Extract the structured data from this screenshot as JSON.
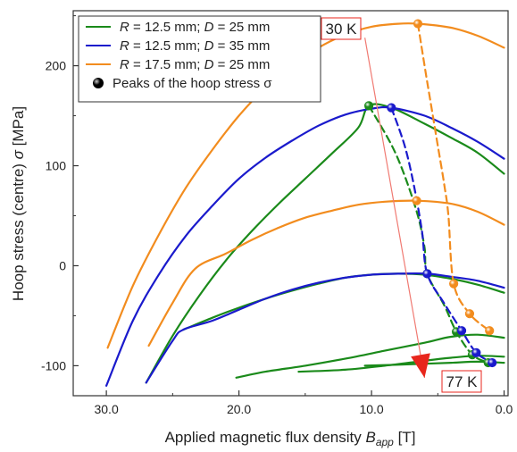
{
  "chart_data": {
    "type": "line",
    "xlabel": "Applied magnetic flux density B_app [T]",
    "xlabel_parts": {
      "main": "Applied magnetic flux density ",
      "var": "B",
      "sub": "app",
      "unit": " [T]"
    },
    "ylabel": "Hoop stress (centre) σ [MPa]",
    "ylabel_parts": {
      "main": "Hoop stress (centre) ",
      "var": "σ",
      "unit": " [MPa]"
    },
    "xlim": [
      32.5,
      -0.3
    ],
    "ylim": [
      -130,
      255
    ],
    "x_reversed": true,
    "x_ticks": [
      30,
      20,
      10,
      0
    ],
    "x_tick_labels": [
      "30.0",
      "20.0",
      "10.0",
      "0.0"
    ],
    "y_ticks": [
      -100,
      0,
      100,
      200
    ],
    "y_tick_labels": [
      "-100",
      "0",
      "100",
      "200"
    ],
    "legend_position": "top-left",
    "legend": [
      {
        "var1": "R",
        "text1": " = 12.5 mm; ",
        "var2": "D",
        "text2": " = 25 mm",
        "color": "#1a8a1a",
        "kind": "line"
      },
      {
        "var1": "R",
        "text1": " = 12.5 mm; ",
        "var2": "D",
        "text2": " = 35 mm",
        "color": "#1a1acc",
        "kind": "line"
      },
      {
        "var1": "R",
        "text1": " = 17.5 mm; ",
        "var2": "D",
        "text2": " = 25 mm",
        "color": "#f28c1e",
        "kind": "line"
      },
      {
        "text": "Peaks of the hoop stress σ",
        "color": "#000000",
        "kind": "marker"
      }
    ],
    "annotations": {
      "top_label": "30 K",
      "bottom_label": "77 K",
      "arrow_from": [
        10.5,
        228
      ],
      "arrow_to": [
        6.0,
        -112
      ],
      "arrow_color": "#e8261c"
    },
    "series": [
      {
        "group": "R12.5_D25",
        "color": "#1a8a1a",
        "kind": "curve",
        "points": [
          [
            27.0,
            -117
          ],
          [
            25,
            -70
          ],
          [
            23,
            -30
          ],
          [
            21,
            5
          ],
          [
            19,
            35
          ],
          [
            17,
            62
          ],
          [
            15,
            87
          ],
          [
            13,
            112
          ],
          [
            11,
            138
          ],
          [
            10.2,
            160
          ],
          [
            8.5,
            158
          ],
          [
            6,
            142
          ],
          [
            4,
            128
          ],
          [
            2,
            113
          ],
          [
            0,
            92
          ]
        ]
      },
      {
        "group": "R12.5_D25",
        "color": "#1a8a1a",
        "kind": "curve",
        "points": [
          [
            24.2,
            -64
          ],
          [
            22,
            -52
          ],
          [
            20,
            -42
          ],
          [
            18,
            -33
          ],
          [
            16,
            -25
          ],
          [
            14,
            -18
          ],
          [
            12,
            -12
          ],
          [
            10,
            -9
          ],
          [
            8,
            -8
          ],
          [
            6,
            -9
          ],
          [
            4,
            -13
          ],
          [
            2,
            -19
          ],
          [
            0,
            -27
          ]
        ]
      },
      {
        "group": "R12.5_D25",
        "color": "#1a8a1a",
        "kind": "curve",
        "points": [
          [
            20.2,
            -112
          ],
          [
            18,
            -106
          ],
          [
            15,
            -100
          ],
          [
            12,
            -93
          ],
          [
            9,
            -85
          ],
          [
            6,
            -77
          ],
          [
            4,
            -71
          ],
          [
            2,
            -69
          ],
          [
            0,
            -72
          ]
        ]
      },
      {
        "group": "R12.5_D25",
        "color": "#1a8a1a",
        "kind": "curve",
        "points": [
          [
            15.5,
            -106
          ],
          [
            12,
            -104
          ],
          [
            9,
            -100
          ],
          [
            6,
            -95
          ],
          [
            4,
            -92
          ],
          [
            2,
            -90
          ],
          [
            0,
            -91
          ]
        ]
      },
      {
        "group": "R12.5_D25",
        "color": "#1a8a1a",
        "kind": "curve",
        "points": [
          [
            10.5,
            -100
          ],
          [
            8,
            -99
          ],
          [
            6,
            -98
          ],
          [
            4,
            -97
          ],
          [
            2,
            -96
          ],
          [
            0,
            -97
          ]
        ]
      },
      {
        "group": "R12.5_D35",
        "color": "#1a1acc",
        "kind": "curve",
        "points": [
          [
            30.0,
            -120
          ],
          [
            28,
            -55
          ],
          [
            26,
            -8
          ],
          [
            24,
            30
          ],
          [
            22,
            60
          ],
          [
            20,
            87
          ],
          [
            18,
            108
          ],
          [
            16,
            125
          ],
          [
            14,
            140
          ],
          [
            12,
            151
          ],
          [
            10,
            157
          ],
          [
            8.5,
            158
          ],
          [
            6,
            150
          ],
          [
            4,
            138
          ],
          [
            2,
            124
          ],
          [
            0,
            107
          ]
        ]
      },
      {
        "group": "R12.5_D35",
        "color": "#1a1acc",
        "kind": "curve",
        "points": [
          [
            27.0,
            -117
          ],
          [
            25,
            -75
          ],
          [
            24.2,
            -64
          ],
          [
            22,
            -55
          ],
          [
            20,
            -44
          ],
          [
            18,
            -33
          ],
          [
            16,
            -24
          ],
          [
            14,
            -17
          ],
          [
            12,
            -12
          ],
          [
            10,
            -9
          ],
          [
            8,
            -8
          ],
          [
            5.8,
            -8
          ],
          [
            4,
            -11
          ],
          [
            2,
            -15
          ],
          [
            0,
            -22
          ]
        ]
      },
      {
        "group": "R17.5_D25",
        "color": "#f28c1e",
        "kind": "curve",
        "points": [
          [
            29.9,
            -82
          ],
          [
            28,
            -20
          ],
          [
            26,
            32
          ],
          [
            24,
            78
          ],
          [
            22,
            116
          ],
          [
            20,
            150
          ],
          [
            18,
            178
          ],
          [
            16,
            200
          ],
          [
            14,
            218
          ],
          [
            12,
            231
          ],
          [
            10,
            239
          ],
          [
            8,
            242
          ],
          [
            6.5,
            242
          ],
          [
            4,
            238
          ],
          [
            2,
            230
          ],
          [
            0,
            218
          ]
        ]
      },
      {
        "group": "R17.5_D25",
        "color": "#f28c1e",
        "kind": "curve",
        "points": [
          [
            26.8,
            -80
          ],
          [
            25,
            -37
          ],
          [
            23.3,
            -3
          ],
          [
            21,
            12
          ],
          [
            19,
            26
          ],
          [
            17,
            38
          ],
          [
            15,
            48
          ],
          [
            13,
            55
          ],
          [
            11,
            61
          ],
          [
            9,
            64
          ],
          [
            6.6,
            65
          ],
          [
            4,
            62
          ],
          [
            2,
            54
          ],
          [
            0,
            41
          ]
        ]
      },
      {
        "group": "R12.5_D25",
        "color": "#1a8a1a",
        "kind": "peaks-dashed",
        "points": [
          [
            10.2,
            160
          ],
          [
            8.5,
            121
          ],
          [
            7.5,
            90
          ],
          [
            6.5,
            50
          ],
          [
            6.0,
            18
          ],
          [
            5.8,
            -8
          ],
          [
            4.5,
            -40
          ],
          [
            3.6,
            -66
          ],
          [
            2.4,
            -89
          ],
          [
            1.2,
            -97
          ]
        ]
      },
      {
        "group": "R12.5_D35",
        "color": "#1a1acc",
        "kind": "peaks-dashed",
        "points": [
          [
            8.5,
            158
          ],
          [
            7.5,
            120
          ],
          [
            6.8,
            80
          ],
          [
            6.2,
            35
          ],
          [
            5.8,
            -8
          ],
          [
            4.5,
            -38
          ],
          [
            3.2,
            -65
          ],
          [
            2.1,
            -87
          ],
          [
            0.9,
            -97
          ]
        ]
      },
      {
        "group": "R17.5_D25",
        "color": "#f28c1e",
        "kind": "peaks-dashed",
        "points": [
          [
            6.5,
            242
          ],
          [
            6.0,
            200
          ],
          [
            5.5,
            160
          ],
          [
            5.0,
            120
          ],
          [
            4.5,
            80
          ],
          [
            4.2,
            50
          ],
          [
            3.8,
            -18
          ],
          [
            2.6,
            -48
          ],
          [
            1.1,
            -65
          ]
        ]
      }
    ],
    "peaks": [
      {
        "x": 10.2,
        "y": 160,
        "color": "#1a8a1a"
      },
      {
        "x": 5.8,
        "y": -8,
        "color": "#1a8a1a"
      },
      {
        "x": 3.6,
        "y": -66,
        "color": "#1a8a1a"
      },
      {
        "x": 2.4,
        "y": -89,
        "color": "#1a8a1a"
      },
      {
        "x": 1.2,
        "y": -97,
        "color": "#1a8a1a"
      },
      {
        "x": 8.5,
        "y": 158,
        "color": "#1a1acc"
      },
      {
        "x": 5.8,
        "y": -8,
        "color": "#1a1acc"
      },
      {
        "x": 3.2,
        "y": -65,
        "color": "#1a1acc"
      },
      {
        "x": 2.1,
        "y": -87,
        "color": "#1a1acc"
      },
      {
        "x": 0.9,
        "y": -97,
        "color": "#1a1acc"
      },
      {
        "x": 6.5,
        "y": 242,
        "color": "#f28c1e"
      },
      {
        "x": 6.6,
        "y": 65,
        "color": "#f28c1e"
      },
      {
        "x": 3.8,
        "y": -18,
        "color": "#f28c1e"
      },
      {
        "x": 2.6,
        "y": -48,
        "color": "#f28c1e"
      },
      {
        "x": 1.1,
        "y": -65,
        "color": "#f28c1e"
      }
    ]
  }
}
